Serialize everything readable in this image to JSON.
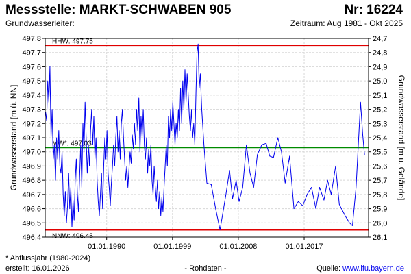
{
  "header": {
    "title": "Messstelle: MARKT-SCHWABEN 905",
    "number": "Nr: 16224",
    "aquifer": "Grundwasserleiter:",
    "period": "Zeitraum: Aug 1981 - Okt 2025"
  },
  "footer": {
    "note": "* Abflussjahr (1980-2024)",
    "created": "erstellt:  16.01.2026",
    "raw": "- Rohdaten -",
    "source_label": "Quelle: ",
    "source_link": "www.lfu.bayern.de"
  },
  "chart_data": {
    "type": "line",
    "ylabel": "Grundwasserstand [m ü. NN]",
    "y2label": "Grundwasserstand [m u. Gelände]",
    "ylim": [
      496.4,
      497.8
    ],
    "y2lim": [
      26.1,
      24.7
    ],
    "xlim": [
      "1981-08",
      "2025-10"
    ],
    "x_ticks": [
      "01.01.1990",
      "01.01.1999",
      "01.01.2008",
      "01.01.2017"
    ],
    "x_tick_years": [
      1990.0,
      1999.0,
      2008.0,
      2017.0
    ],
    "y_ticks": [
      "496,4",
      "496,5",
      "496,6",
      "496,7",
      "496,8",
      "496,9",
      "497,0",
      "497,1",
      "497,2",
      "497,3",
      "497,4",
      "497,5",
      "497,6",
      "497,7",
      "497,8"
    ],
    "y2_ticks": [
      "26,1",
      "26,0",
      "25,9",
      "25,8",
      "25,7",
      "25,6",
      "25,5",
      "25,4",
      "25,3",
      "25,2",
      "25,1",
      "25,0",
      "24,9",
      "24,8",
      "24,7"
    ],
    "grid": true,
    "reference_lines": [
      {
        "label": "HHW: 497.75",
        "value": 497.75,
        "color": "#e00000"
      },
      {
        "label": "MW*: 497.03",
        "value": 497.03,
        "color": "#008a00"
      },
      {
        "label": "NNW: 496.45",
        "value": 496.45,
        "color": "#e00000"
      }
    ],
    "series": [
      {
        "color": "#0000ee",
        "points": [
          [
            1981.65,
            497.28
          ],
          [
            1981.8,
            497.22
          ],
          [
            1981.95,
            497.5
          ],
          [
            1982.1,
            497.35
          ],
          [
            1982.25,
            497.6
          ],
          [
            1982.4,
            497.1
          ],
          [
            1982.55,
            497.3
          ],
          [
            1982.7,
            496.95
          ],
          [
            1982.85,
            497.05
          ],
          [
            1983.0,
            496.8
          ],
          [
            1983.15,
            497.1
          ],
          [
            1983.3,
            496.95
          ],
          [
            1983.45,
            497.15
          ],
          [
            1983.6,
            496.9
          ],
          [
            1983.75,
            496.85
          ],
          [
            1983.9,
            497.0
          ],
          [
            1984.05,
            496.7
          ],
          [
            1984.2,
            496.55
          ],
          [
            1984.35,
            496.72
          ],
          [
            1984.5,
            496.5
          ],
          [
            1984.65,
            496.62
          ],
          [
            1984.8,
            496.85
          ],
          [
            1984.95,
            496.6
          ],
          [
            1985.1,
            496.75
          ],
          [
            1985.25,
            496.47
          ],
          [
            1985.4,
            496.66
          ],
          [
            1985.55,
            496.52
          ],
          [
            1985.7,
            496.8
          ],
          [
            1985.85,
            496.95
          ],
          [
            1986.0,
            496.7
          ],
          [
            1986.15,
            496.58
          ],
          [
            1986.3,
            496.82
          ],
          [
            1986.45,
            497.05
          ],
          [
            1986.6,
            496.75
          ],
          [
            1986.75,
            497.2
          ],
          [
            1986.9,
            497.0
          ],
          [
            1987.05,
            497.35
          ],
          [
            1987.2,
            497.1
          ],
          [
            1987.35,
            496.85
          ],
          [
            1987.5,
            497.05
          ],
          [
            1987.65,
            496.9
          ],
          [
            1987.8,
            497.15
          ],
          [
            1987.95,
            497.3
          ],
          [
            1988.1,
            497.05
          ],
          [
            1988.25,
            497.25
          ],
          [
            1988.4,
            496.95
          ],
          [
            1988.55,
            497.1
          ],
          [
            1988.7,
            496.8
          ],
          [
            1988.85,
            496.65
          ],
          [
            1989.0,
            496.55
          ],
          [
            1989.15,
            496.7
          ],
          [
            1989.3,
            496.85
          ],
          [
            1989.45,
            496.6
          ],
          [
            1989.6,
            496.9
          ],
          [
            1989.75,
            497.1
          ],
          [
            1989.9,
            496.95
          ],
          [
            1990.05,
            497.15
          ],
          [
            1990.2,
            496.85
          ],
          [
            1990.35,
            496.75
          ],
          [
            1990.5,
            496.62
          ],
          [
            1990.65,
            496.78
          ],
          [
            1990.8,
            496.9
          ],
          [
            1990.95,
            497.05
          ],
          [
            1991.1,
            496.9
          ],
          [
            1991.25,
            497.1
          ],
          [
            1991.4,
            497.25
          ],
          [
            1991.55,
            497.0
          ],
          [
            1991.7,
            497.15
          ],
          [
            1991.85,
            496.95
          ],
          [
            1992.0,
            497.2
          ],
          [
            1992.15,
            497.3
          ],
          [
            1992.3,
            497.1
          ],
          [
            1992.45,
            496.95
          ],
          [
            1992.6,
            496.8
          ],
          [
            1992.75,
            496.9
          ],
          [
            1992.9,
            496.75
          ],
          [
            1993.05,
            496.88
          ],
          [
            1993.2,
            497.0
          ],
          [
            1993.35,
            496.92
          ],
          [
            1993.5,
            497.12
          ],
          [
            1993.65,
            497.02
          ],
          [
            1993.8,
            497.2
          ],
          [
            1993.95,
            497.05
          ],
          [
            1994.1,
            497.3
          ],
          [
            1994.25,
            497.15
          ],
          [
            1994.4,
            497.38
          ],
          [
            1994.55,
            497.0
          ],
          [
            1994.7,
            497.25
          ],
          [
            1994.85,
            497.1
          ],
          [
            1995.0,
            497.3
          ],
          [
            1995.15,
            497.05
          ],
          [
            1995.3,
            496.95
          ],
          [
            1995.45,
            497.1
          ],
          [
            1995.6,
            496.85
          ],
          [
            1995.75,
            497.02
          ],
          [
            1995.9,
            496.9
          ],
          [
            1996.05,
            497.05
          ],
          [
            1996.2,
            496.8
          ],
          [
            1996.35,
            496.7
          ],
          [
            1996.5,
            496.9
          ],
          [
            1996.65,
            496.75
          ],
          [
            1996.8,
            496.65
          ],
          [
            1996.95,
            496.8
          ],
          [
            1997.1,
            496.6
          ],
          [
            1997.25,
            496.72
          ],
          [
            1997.4,
            496.55
          ],
          [
            1997.55,
            496.68
          ],
          [
            1997.7,
            496.58
          ],
          [
            1997.85,
            496.75
          ],
          [
            1998.0,
            496.9
          ],
          [
            1998.15,
            497.05
          ],
          [
            1998.3,
            496.9
          ],
          [
            1998.45,
            497.25
          ],
          [
            1998.6,
            497.1
          ],
          [
            1998.75,
            497.3
          ],
          [
            1998.9,
            497.15
          ],
          [
            1999.05,
            497.35
          ],
          [
            1999.2,
            497.2
          ],
          [
            1999.35,
            497.05
          ],
          [
            1999.5,
            497.2
          ],
          [
            1999.65,
            497.1
          ],
          [
            1999.8,
            497.3
          ],
          [
            1999.95,
            497.15
          ],
          [
            2000.1,
            497.45
          ],
          [
            2000.25,
            497.2
          ],
          [
            2000.4,
            497.5
          ],
          [
            2000.55,
            497.3
          ],
          [
            2000.7,
            497.58
          ],
          [
            2000.85,
            497.35
          ],
          [
            2001.0,
            497.55
          ],
          [
            2001.15,
            497.4
          ],
          [
            2001.3,
            497.25
          ],
          [
            2001.45,
            497.15
          ],
          [
            2001.6,
            497.3
          ],
          [
            2001.75,
            497.1
          ],
          [
            2001.9,
            497.2
          ],
          [
            2002.05,
            497.05
          ],
          [
            2002.2,
            497.4
          ],
          [
            2002.35,
            497.7
          ],
          [
            2002.5,
            497.76
          ],
          [
            2002.65,
            497.45
          ],
          [
            2002.8,
            497.55
          ],
          [
            2003.0,
            497.3
          ],
          [
            2003.3,
            497.05
          ],
          [
            2003.7,
            496.78
          ],
          [
            2004.3,
            496.77
          ],
          [
            2004.9,
            496.6
          ],
          [
            2005.5,
            496.45
          ],
          [
            2006.3,
            496.7
          ],
          [
            2006.8,
            496.87
          ],
          [
            2007.2,
            496.67
          ],
          [
            2007.7,
            496.8
          ],
          [
            2008.1,
            496.65
          ],
          [
            2008.6,
            496.75
          ],
          [
            2009.1,
            497.05
          ],
          [
            2009.6,
            496.85
          ],
          [
            2010.1,
            496.75
          ],
          [
            2010.6,
            496.98
          ],
          [
            2011.2,
            497.05
          ],
          [
            2011.8,
            497.06
          ],
          [
            2012.3,
            496.97
          ],
          [
            2012.8,
            496.96
          ],
          [
            2013.4,
            497.1
          ],
          [
            2013.9,
            497.0
          ],
          [
            2014.4,
            496.78
          ],
          [
            2015.0,
            496.97
          ],
          [
            2015.6,
            496.6
          ],
          [
            2016.2,
            496.65
          ],
          [
            2016.8,
            496.62
          ],
          [
            2017.4,
            496.7
          ],
          [
            2018.0,
            496.75
          ],
          [
            2018.6,
            496.6
          ],
          [
            2019.1,
            496.75
          ],
          [
            2019.7,
            496.66
          ],
          [
            2020.2,
            496.8
          ],
          [
            2020.7,
            496.7
          ],
          [
            2021.3,
            496.9
          ],
          [
            2021.8,
            496.63
          ],
          [
            2022.6,
            496.55
          ],
          [
            2023.2,
            496.5
          ],
          [
            2023.6,
            496.48
          ],
          [
            2024.1,
            496.75
          ],
          [
            2024.7,
            497.35
          ],
          [
            2025.0,
            497.12
          ],
          [
            2025.25,
            496.98
          ]
        ]
      }
    ]
  }
}
